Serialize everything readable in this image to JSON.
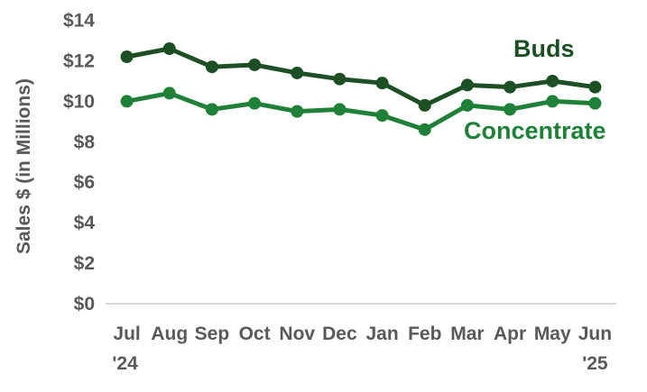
{
  "chart_data": {
    "type": "line",
    "title": "",
    "ylabel": "Sales $ (in Millions)",
    "xlabel": "",
    "categories": [
      "Jul",
      "Aug",
      "Sep",
      "Oct",
      "Nov",
      "Dec",
      "Jan",
      "Feb",
      "Mar",
      "Apr",
      "May",
      "Jun"
    ],
    "year_labels": {
      "start": "'24",
      "end": "'25"
    },
    "series": [
      {
        "name": "Buds",
        "color": "#1d4f24",
        "values": [
          12.2,
          12.6,
          11.7,
          11.8,
          11.4,
          11.1,
          10.9,
          9.8,
          10.8,
          10.7,
          11.0,
          10.7
        ]
      },
      {
        "name": "Concentrate",
        "color": "#1f8038",
        "values": [
          10.0,
          10.4,
          9.6,
          9.9,
          9.5,
          9.6,
          9.3,
          8.6,
          9.8,
          9.6,
          10.0,
          9.9
        ]
      }
    ],
    "y_ticks": [
      {
        "label": "$0",
        "value": 0
      },
      {
        "label": "$2",
        "value": 2
      },
      {
        "label": "$4",
        "value": 4
      },
      {
        "label": "$6",
        "value": 6
      },
      {
        "label": "$8",
        "value": 8
      },
      {
        "label": "$10",
        "value": 10
      },
      {
        "label": "$12",
        "value": 12
      },
      {
        "label": "$14",
        "value": 14
      }
    ],
    "ylim": [
      0,
      14
    ],
    "grid": false,
    "legend_position": "inline-labels"
  },
  "colors": {
    "background": "#ffffff",
    "axis_text": "#595959",
    "axis_line": "#d9d9d9"
  }
}
